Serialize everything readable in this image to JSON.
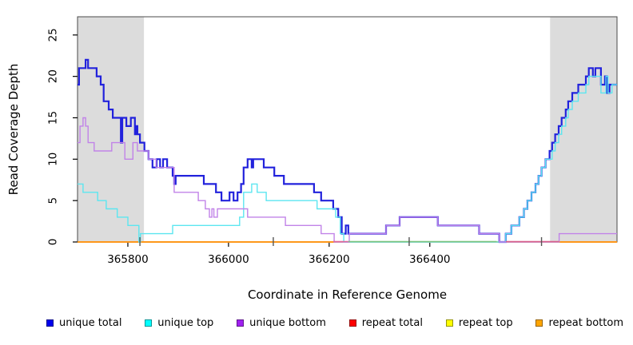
{
  "figure": {
    "background": "#ffffff",
    "plot_box_color": "#4a4a4a"
  },
  "chart_data": {
    "type": "line",
    "step": "after",
    "title": "",
    "xlabel": "Coordinate in Reference Genome",
    "ylabel": "Read Coverage Depth",
    "xlim": [
      365700,
      366772
    ],
    "ylim": [
      0,
      27.2
    ],
    "x_ticks": [
      365800,
      366000,
      366200,
      366400
    ],
    "y_ticks": [
      0,
      5,
      10,
      15,
      20,
      25
    ],
    "grid": false,
    "legend_position": "bottom",
    "shaded_regions": [
      {
        "x0": 365700,
        "x1": 365832,
        "color": "#DCDCDC"
      },
      {
        "x0": 366639,
        "x1": 366772,
        "color": "#DCDCDC"
      }
    ],
    "series": [
      {
        "name": "unique total",
        "color": "#2222DC",
        "swatch": "#0000EE",
        "width": 2.2,
        "z": 2,
        "points": [
          [
            365700,
            19
          ],
          [
            365703,
            21
          ],
          [
            365716,
            22
          ],
          [
            365721,
            21
          ],
          [
            365738,
            20
          ],
          [
            365746,
            19
          ],
          [
            365752,
            17
          ],
          [
            365762,
            16
          ],
          [
            365770,
            15
          ],
          [
            365786,
            12
          ],
          [
            365789,
            15
          ],
          [
            365797,
            14
          ],
          [
            365806,
            15
          ],
          [
            365814,
            13
          ],
          [
            365817,
            14
          ],
          [
            365819,
            13
          ],
          [
            365824,
            12
          ],
          [
            365833,
            11
          ],
          [
            365841,
            10
          ],
          [
            365849,
            9
          ],
          [
            365857,
            10
          ],
          [
            365864,
            9
          ],
          [
            365870,
            10
          ],
          [
            365878,
            9
          ],
          [
            365889,
            8
          ],
          [
            365892,
            7
          ],
          [
            365895,
            8
          ],
          [
            365951,
            7
          ],
          [
            365975,
            6
          ],
          [
            365986,
            5
          ],
          [
            366002,
            6
          ],
          [
            366010,
            5
          ],
          [
            366018,
            6
          ],
          [
            366025,
            7
          ],
          [
            366030,
            9
          ],
          [
            366038,
            10
          ],
          [
            366046,
            9
          ],
          [
            366049,
            10
          ],
          [
            366070,
            9
          ],
          [
            366091,
            8
          ],
          [
            366110,
            7
          ],
          [
            366170,
            6
          ],
          [
            366184,
            5
          ],
          [
            366208,
            4
          ],
          [
            366218,
            3
          ],
          [
            366225,
            1
          ],
          [
            366233,
            2
          ],
          [
            366238,
            1
          ],
          [
            366313,
            2
          ],
          [
            366340,
            3
          ],
          [
            366416,
            2
          ],
          [
            366498,
            1
          ],
          [
            366538,
            0
          ],
          [
            366551,
            1
          ],
          [
            366562,
            2
          ],
          [
            366578,
            3
          ],
          [
            366587,
            4
          ],
          [
            366594,
            5
          ],
          [
            366602,
            6
          ],
          [
            366610,
            7
          ],
          [
            366616,
            8
          ],
          [
            366622,
            9
          ],
          [
            366630,
            10
          ],
          [
            366638,
            11
          ],
          [
            366643,
            12
          ],
          [
            366649,
            13
          ],
          [
            366656,
            14
          ],
          [
            366662,
            15
          ],
          [
            366670,
            16
          ],
          [
            366675,
            17
          ],
          [
            366683,
            18
          ],
          [
            366695,
            19
          ],
          [
            366710,
            20
          ],
          [
            366716,
            21
          ],
          [
            366724,
            20
          ],
          [
            366729,
            21
          ],
          [
            366740,
            19
          ],
          [
            366748,
            20
          ],
          [
            366752,
            18
          ],
          [
            366757,
            19
          ]
        ]
      },
      {
        "name": "unique top",
        "color": "#5CE6F0",
        "swatch": "#00FFFF",
        "width": 1.4,
        "z": 3,
        "points": [
          [
            365700,
            7
          ],
          [
            365711,
            6
          ],
          [
            365740,
            5
          ],
          [
            365757,
            4
          ],
          [
            365779,
            3
          ],
          [
            365800,
            2
          ],
          [
            365822,
            0
          ],
          [
            365825,
            1
          ],
          [
            365889,
            2
          ],
          [
            366022,
            3
          ],
          [
            366030,
            6
          ],
          [
            366046,
            7
          ],
          [
            366057,
            6
          ],
          [
            366075,
            5
          ],
          [
            366176,
            4
          ],
          [
            366213,
            3
          ],
          [
            366222,
            1
          ],
          [
            366229,
            0
          ],
          [
            366551,
            1
          ],
          [
            366562,
            2
          ],
          [
            366578,
            3
          ],
          [
            366587,
            4
          ],
          [
            366594,
            5
          ],
          [
            366602,
            6
          ],
          [
            366610,
            7
          ],
          [
            366616,
            8
          ],
          [
            366622,
            9
          ],
          [
            366630,
            10
          ],
          [
            366643,
            11
          ],
          [
            366649,
            12
          ],
          [
            366656,
            13
          ],
          [
            366662,
            14
          ],
          [
            366670,
            15
          ],
          [
            366675,
            16
          ],
          [
            366683,
            17
          ],
          [
            366695,
            18
          ],
          [
            366710,
            19
          ],
          [
            366716,
            20
          ],
          [
            366740,
            18
          ],
          [
            366750,
            20
          ],
          [
            366754,
            18
          ],
          [
            366762,
            19
          ]
        ]
      },
      {
        "name": "unique bottom",
        "color": "#C183E8",
        "swatch": "#A020F0",
        "width": 1.4,
        "z": 4,
        "points": [
          [
            365700,
            12
          ],
          [
            365705,
            14
          ],
          [
            365711,
            15
          ],
          [
            365716,
            14
          ],
          [
            365721,
            12
          ],
          [
            365733,
            11
          ],
          [
            365768,
            12
          ],
          [
            365794,
            10
          ],
          [
            365810,
            12
          ],
          [
            365819,
            11
          ],
          [
            365841,
            10
          ],
          [
            365856,
            9
          ],
          [
            365892,
            6
          ],
          [
            365940,
            5
          ],
          [
            365954,
            4
          ],
          [
            365962,
            3
          ],
          [
            365967,
            4
          ],
          [
            365971,
            3
          ],
          [
            365978,
            4
          ],
          [
            366038,
            3
          ],
          [
            366113,
            2
          ],
          [
            366184,
            1
          ],
          [
            366210,
            0
          ],
          [
            366240,
            1
          ],
          [
            366313,
            2
          ],
          [
            366340,
            3
          ],
          [
            366416,
            2
          ],
          [
            366498,
            1
          ],
          [
            366538,
            0
          ],
          [
            366657,
            1
          ]
        ]
      },
      {
        "name": "repeat total",
        "color": "#EE2C2C",
        "swatch": "#FF0000",
        "width": 1.4,
        "z": 1,
        "points": [
          [
            365700,
            0
          ]
        ]
      },
      {
        "name": "repeat top",
        "color": "#FFFF00",
        "swatch": "#FFFF00",
        "width": 1.4,
        "z": 1,
        "points": [
          [
            365700,
            0
          ]
        ]
      },
      {
        "name": "repeat bottom",
        "color": "#FF9015",
        "swatch": "#FFA500",
        "width": 1.8,
        "z": 1,
        "points": [
          [
            365700,
            0
          ]
        ]
      }
    ],
    "zero_line_overlaps": [
      {
        "x0": 366208,
        "x1": 366238,
        "color": "#E0679A"
      },
      {
        "x0": 366238,
        "x1": 366533,
        "color": "#7CC47E"
      },
      {
        "x0": 366551,
        "x1": 366657,
        "color": "#D8608C"
      }
    ],
    "inner_marks": {
      "positions": [
        365824,
        366089,
        366359,
        366622
      ],
      "color": "#555555"
    }
  }
}
